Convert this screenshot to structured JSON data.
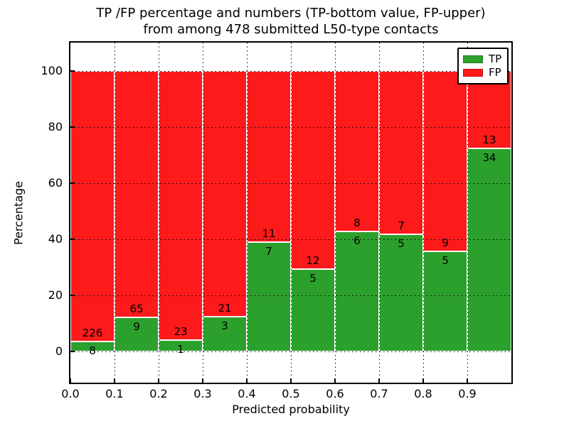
{
  "figure_title": {
    "line1": "TP /FP percentage and numbers (TP-bottom value, FP-upper)",
    "line2": "from among 478 submitted L50-type contacts"
  },
  "chart_data": {
    "type": "bar",
    "stacked": true,
    "title": "TP /FP percentage and numbers (TP-bottom value, FP-upper) from among 478 submitted L50-type contacts",
    "xlabel": "Predicted probability",
    "ylabel": "Percentage",
    "total_contacts": 478,
    "bin_width": 0.1,
    "bin_left_edges": [
      0.0,
      0.1,
      0.2,
      0.3,
      0.4,
      0.5,
      0.6,
      0.7,
      0.8,
      0.9
    ],
    "series": [
      {
        "name": "TP",
        "color": "#2CA02C",
        "counts": [
          8,
          9,
          1,
          3,
          7,
          5,
          6,
          5,
          5,
          34
        ]
      },
      {
        "name": "FP",
        "color": "#FC1A1A",
        "counts": [
          226,
          65,
          23,
          21,
          11,
          12,
          8,
          7,
          9,
          13
        ]
      }
    ],
    "tp_percent_of_bin": [
      3.4,
      12.2,
      4.2,
      12.5,
      38.9,
      29.4,
      42.9,
      41.7,
      35.7,
      72.3
    ],
    "bars_sum_to_percent": 100,
    "xticks": [
      "0.0",
      "0.1",
      "0.2",
      "0.3",
      "0.4",
      "0.5",
      "0.6",
      "0.7",
      "0.8",
      "0.9"
    ],
    "yticks": [
      0,
      20,
      40,
      60,
      80,
      100
    ],
    "xlim": [
      0.0,
      1.0
    ],
    "ylim": [
      -11,
      111
    ],
    "grid": "dotted",
    "legend": {
      "position": "upper right",
      "entries": [
        {
          "label": "TP",
          "color": "#2CA02C"
        },
        {
          "label": "FP",
          "color": "#FC1A1A"
        }
      ]
    }
  }
}
